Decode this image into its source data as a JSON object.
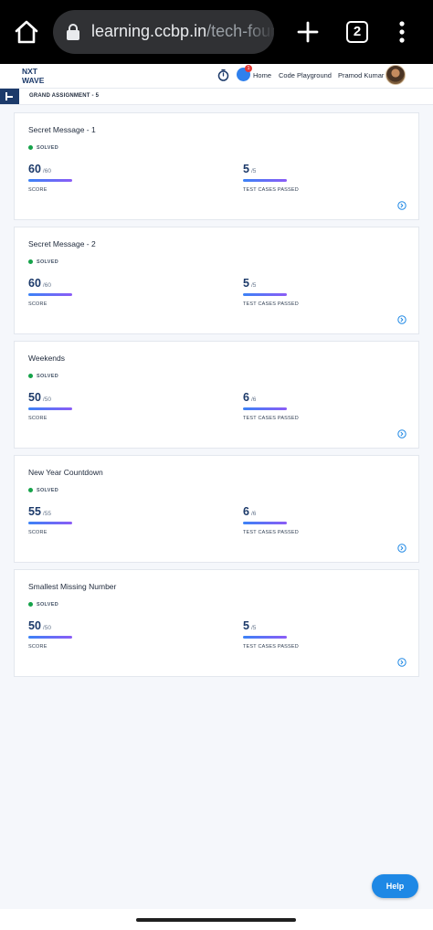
{
  "browser": {
    "url_host": "learning.ccbp.in",
    "url_path": "/tech-founc",
    "tab_count": "2"
  },
  "header": {
    "logo_text": "NXT WAVE",
    "notification_count": "1",
    "nav": {
      "home": "Home",
      "code_playground": "Code Playground",
      "user_name": "Pramod Kumar"
    }
  },
  "breadcrumb": {
    "title": "GRAND ASSIGNMENT - 5"
  },
  "assignments": [
    {
      "title": "Secret Message - 1",
      "status": "SOLVED",
      "score": "60",
      "score_max": "/60",
      "score_label": "SCORE",
      "tests": "5",
      "tests_max": "/5",
      "tests_label": "TEST CASES PASSED"
    },
    {
      "title": "Secret Message - 2",
      "status": "SOLVED",
      "score": "60",
      "score_max": "/60",
      "score_label": "SCORE",
      "tests": "5",
      "tests_max": "/5",
      "tests_label": "TEST CASES PASSED"
    },
    {
      "title": "Weekends",
      "status": "SOLVED",
      "score": "50",
      "score_max": "/50",
      "score_label": "SCORE",
      "tests": "6",
      "tests_max": "/6",
      "tests_label": "TEST CASES PASSED"
    },
    {
      "title": "New Year Countdown",
      "status": "SOLVED",
      "score": "55",
      "score_max": "/55",
      "score_label": "SCORE",
      "tests": "6",
      "tests_max": "/6",
      "tests_label": "TEST CASES PASSED"
    },
    {
      "title": "Smallest Missing Number",
      "status": "SOLVED",
      "score": "50",
      "score_max": "/50",
      "score_label": "SCORE",
      "tests": "5",
      "tests_max": "/5",
      "tests_label": "TEST CASES PASSED"
    }
  ],
  "help": {
    "label": "Help"
  },
  "colors": {
    "primary": "#1c3a6a",
    "solved": "#16a34a",
    "help": "#1e88e5"
  }
}
